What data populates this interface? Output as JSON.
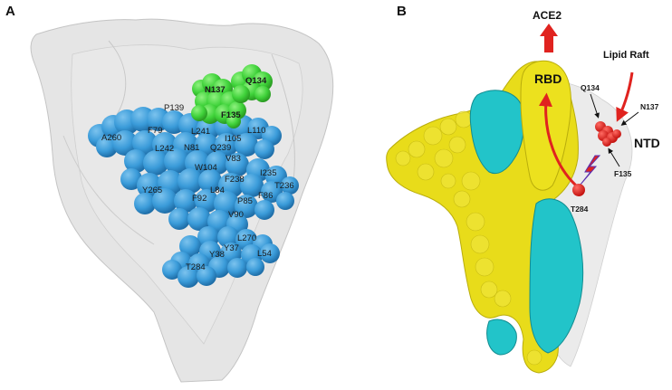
{
  "figure": {
    "panel_a_letter": "A",
    "panel_b_letter": "B"
  },
  "panel_a": {
    "residues_blue": [
      "P139",
      "A260",
      "F79",
      "L241",
      "I105",
      "L110",
      "L242",
      "N81",
      "Q239",
      "V83",
      "W104",
      "I235",
      "F238",
      "T236",
      "Y265",
      "L84",
      "F92",
      "P85",
      "F86",
      "V90",
      "L270",
      "Y37",
      "L54",
      "Y38",
      "T284"
    ],
    "residues_green": [
      "N137",
      "Q134",
      "F135"
    ],
    "colors": {
      "hydrophobic": "#3a9bd9",
      "polar": "#3fd23a",
      "surface": "#d9d9d9"
    }
  },
  "panel_b": {
    "ace2_label": "ACE2",
    "rbd_label": "RBD",
    "lipid_raft_label": "Lipid Raft",
    "ntd_label": "NTD",
    "residue_labels": [
      "Q134",
      "N137",
      "F135",
      "T284"
    ],
    "colors": {
      "yellow_chain": "#e8dc1a",
      "cyan_chain": "#22c4c9",
      "red": "#e0231f"
    }
  }
}
